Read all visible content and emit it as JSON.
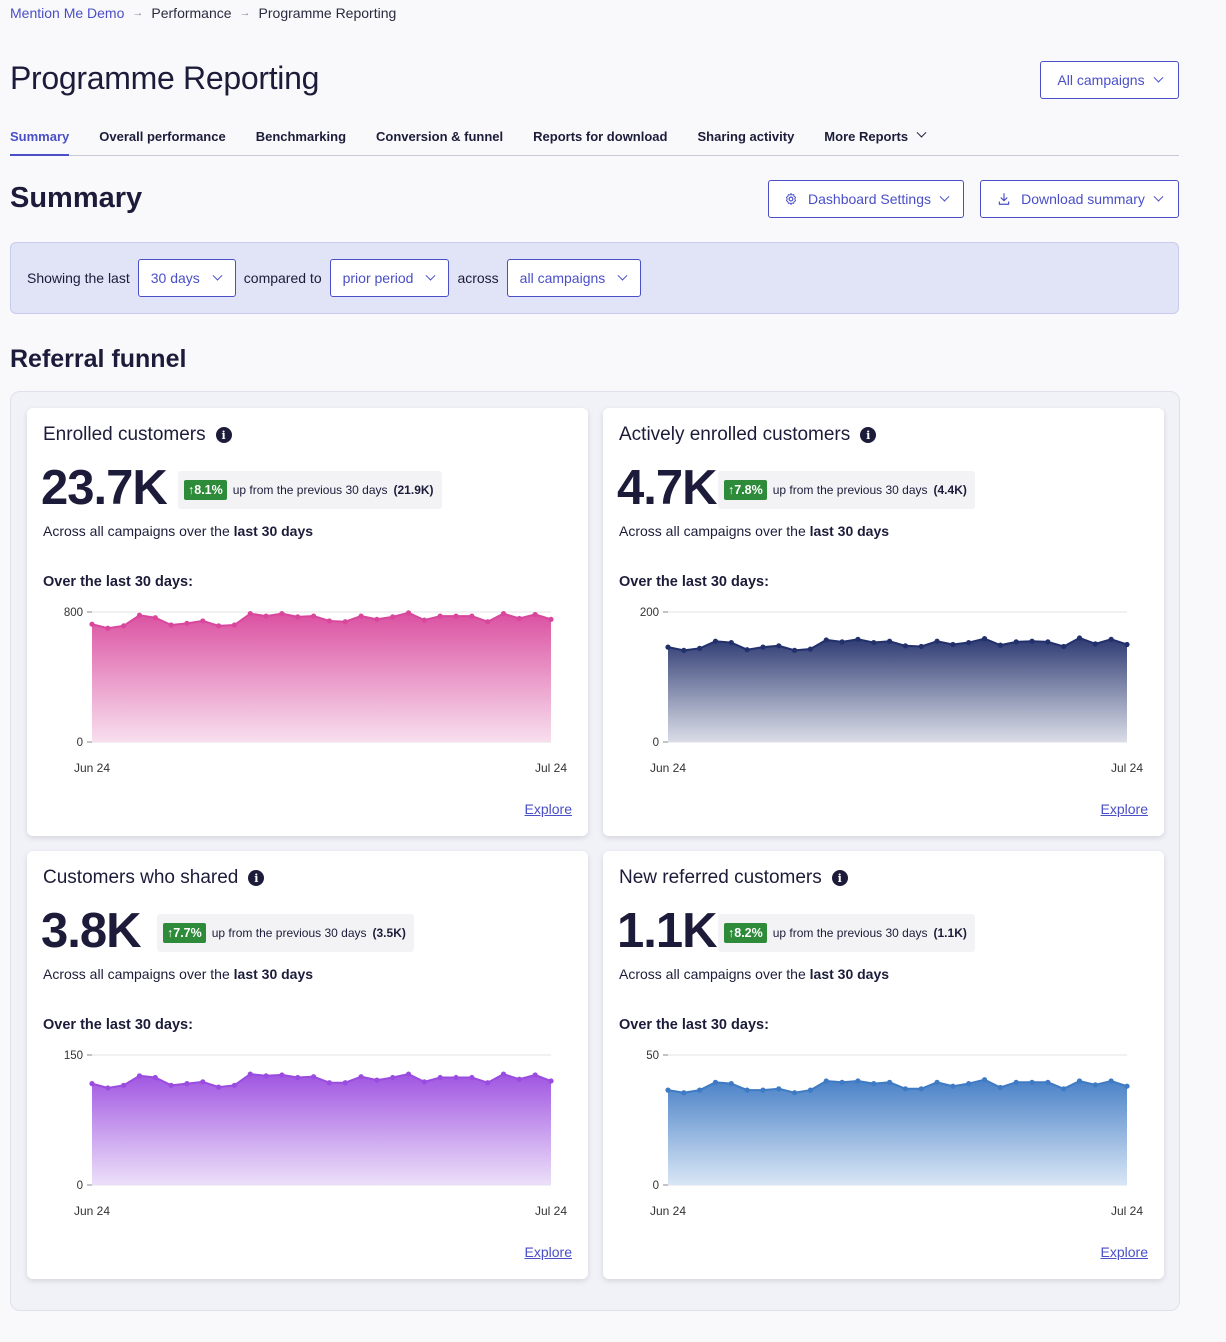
{
  "breadcrumb": {
    "root": "Mention Me Demo",
    "parent": "Performance",
    "current": "Programme Reporting"
  },
  "page_title": "Programme Reporting",
  "campaign_select": "All campaigns",
  "tabs": [
    {
      "label": "Summary",
      "active": true
    },
    {
      "label": "Overall performance"
    },
    {
      "label": "Benchmarking"
    },
    {
      "label": "Conversion & funnel"
    },
    {
      "label": "Reports for download"
    },
    {
      "label": "Sharing activity"
    },
    {
      "label": "More Reports"
    }
  ],
  "summary": {
    "title": "Summary",
    "dashboard_settings": "Dashboard Settings",
    "download_summary": "Download summary"
  },
  "filter": {
    "showing": "Showing the last",
    "period": "30 days",
    "compared": "compared to",
    "comparison": "prior period",
    "across": "across",
    "campaigns": "all campaigns"
  },
  "funnel_title": "Referral funnel",
  "cards": [
    {
      "title": "Enrolled customers",
      "value": "23.7K",
      "delta": "8.1%",
      "delta_text": "up from the previous 30 days",
      "prev": "(21.9K)",
      "across_text": "Across all campaigns over the",
      "across_bold": "last 30 days",
      "over": "Over the last 30 days:",
      "explore": "Explore",
      "color": "#d9479c",
      "color_light": "#f7dbec"
    },
    {
      "title": "Actively enrolled customers",
      "value": "4.7K",
      "delta": "7.8%",
      "delta_text": "up from the previous 30 days",
      "prev": "(4.4K)",
      "across_text": "Across all campaigns over the",
      "across_bold": "last 30 days",
      "over": "Over the last 30 days:",
      "explore": "Explore",
      "color": "#22306b",
      "color_light": "#d6d9e4"
    },
    {
      "title": "Customers who shared",
      "value": "3.8K",
      "delta": "7.7%",
      "delta_text": "up from the previous 30 days",
      "prev": "(3.5K)",
      "across_text": "Across all campaigns over the",
      "across_bold": "last 30 days",
      "over": "Over the last 30 days:",
      "explore": "Explore",
      "color": "#9b4ce0",
      "color_light": "#eadcf8"
    },
    {
      "title": "New referred customers",
      "value": "1.1K",
      "delta": "8.2%",
      "delta_text": "up from the previous 30 days",
      "prev": "(1.1K)",
      "across_text": "Across all campaigns over the",
      "across_bold": "last 30 days",
      "over": "Over the last 30 days:",
      "explore": "Explore",
      "color": "#3f7ac4",
      "color_light": "#d4e3f4"
    }
  ],
  "chart_data": [
    {
      "type": "area",
      "title": "Enrolled customers",
      "x_labels": [
        "Jun 24",
        "Jul 24"
      ],
      "ylim": [
        0,
        800
      ],
      "y_ticks": [
        0,
        800
      ],
      "values": [
        725,
        700,
        715,
        780,
        765,
        720,
        730,
        745,
        715,
        720,
        790,
        775,
        790,
        770,
        775,
        745,
        740,
        775,
        755,
        770,
        795,
        750,
        775,
        775,
        775,
        740,
        790,
        760,
        785,
        755
      ]
    },
    {
      "type": "area",
      "title": "Actively enrolled customers",
      "x_labels": [
        "Jun 24",
        "Jul 24"
      ],
      "ylim": [
        0,
        200
      ],
      "y_ticks": [
        0,
        200
      ],
      "values": [
        146,
        141,
        144,
        155,
        153,
        142,
        146,
        148,
        141,
        143,
        157,
        154,
        158,
        153,
        155,
        148,
        147,
        155,
        150,
        153,
        159,
        149,
        154,
        155,
        154,
        147,
        160,
        151,
        158,
        150
      ]
    },
    {
      "type": "area",
      "title": "Customers who shared",
      "x_labels": [
        "Jun 24",
        "Jul 24"
      ],
      "ylim": [
        0,
        150
      ],
      "y_ticks": [
        0,
        150
      ],
      "values": [
        117,
        112,
        115,
        126,
        124,
        115,
        117,
        119,
        113,
        115,
        128,
        126,
        127,
        124,
        125,
        118,
        118,
        125,
        121,
        124,
        128,
        119,
        124,
        124,
        124,
        118,
        128,
        122,
        127,
        120
      ]
    },
    {
      "type": "area",
      "title": "New referred customers",
      "x_labels": [
        "Jun 24",
        "Jul 24"
      ],
      "ylim": [
        0,
        50
      ],
      "y_ticks": [
        0,
        50
      ],
      "values": [
        36.5,
        35.5,
        36.5,
        39.5,
        39,
        36.5,
        36.5,
        37,
        35.5,
        36.5,
        40,
        39.5,
        40,
        39,
        39.5,
        37,
        37,
        39.5,
        38,
        39,
        40.5,
        37.5,
        39.5,
        39.5,
        39.5,
        37,
        40,
        38.5,
        40,
        38
      ]
    }
  ]
}
